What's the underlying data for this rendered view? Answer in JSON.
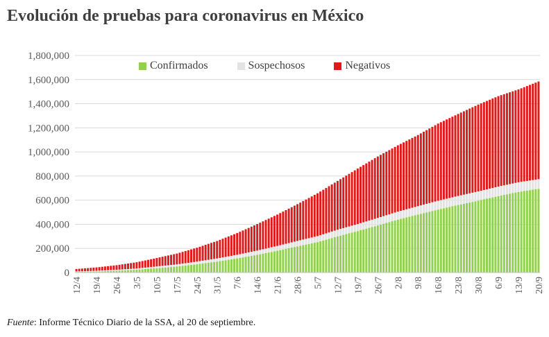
{
  "title": "Evolución de pruebas para coronavirus en México",
  "source": {
    "label": "Fuente",
    "text": ": Informe Técnico Diario de la SSA, al 20 de septiembre."
  },
  "colors": {
    "confirmados": "#92d050",
    "sospechosos": "#e3e3e3",
    "negativos": "#e01a1a",
    "grid": "#d9d9d9",
    "axis": "#595959"
  },
  "chart_data": {
    "type": "bar",
    "stacked": true,
    "title": "Evolución de pruebas para coronavirus en México",
    "xlabel": "",
    "ylabel": "",
    "ylim": [
      0,
      1800000
    ],
    "yticks": [
      0,
      200000,
      400000,
      600000,
      800000,
      1000000,
      1200000,
      1400000,
      1600000,
      1800000
    ],
    "ytick_labels": [
      "0",
      "200,000",
      "400,000",
      "600,000",
      "800,000",
      "1,000,000",
      "1,200,000",
      "1,400,000",
      "1,600,000",
      "1,800,000"
    ],
    "x_range_days": 162,
    "xticks": [
      {
        "day": 0,
        "label": "12/4"
      },
      {
        "day": 7,
        "label": "19/4"
      },
      {
        "day": 14,
        "label": "26/4"
      },
      {
        "day": 21,
        "label": "3/5"
      },
      {
        "day": 28,
        "label": "10/5"
      },
      {
        "day": 35,
        "label": "17/5"
      },
      {
        "day": 42,
        "label": "24/5"
      },
      {
        "day": 49,
        "label": "31/5"
      },
      {
        "day": 56,
        "label": "7/6"
      },
      {
        "day": 63,
        "label": "14/6"
      },
      {
        "day": 70,
        "label": "21/6"
      },
      {
        "day": 77,
        "label": "28/6"
      },
      {
        "day": 84,
        "label": "5/7"
      },
      {
        "day": 91,
        "label": "12/7"
      },
      {
        "day": 98,
        "label": "19/7"
      },
      {
        "day": 105,
        "label": "26/7"
      },
      {
        "day": 112,
        "label": "2/8"
      },
      {
        "day": 119,
        "label": "9/8"
      },
      {
        "day": 126,
        "label": "16/8"
      },
      {
        "day": 133,
        "label": "23/8"
      },
      {
        "day": 140,
        "label": "30/8"
      },
      {
        "day": 147,
        "label": "6/9"
      },
      {
        "day": 154,
        "label": "13/9"
      },
      {
        "day": 161,
        "label": "20/9"
      }
    ],
    "legend_position": "top",
    "series_anchor_days": [
      0,
      7,
      14,
      21,
      28,
      35,
      42,
      49,
      56,
      63,
      70,
      77,
      84,
      91,
      98,
      105,
      112,
      119,
      126,
      133,
      140,
      147,
      154,
      161
    ],
    "series": [
      {
        "name": "Confirmados",
        "color": "#92d050",
        "values": [
          4661,
          8261,
          14677,
          23471,
          36327,
          49219,
          68620,
          90664,
          117103,
          146837,
          180545,
          216852,
          252165,
          299750,
          344224,
          390516,
          439046,
          480278,
          522162,
          560164,
          595841,
          634023,
          668381,
          694121
        ]
      },
      {
        "name": "Sospechosos",
        "color": "#e3e3e3",
        "values": [
          4500,
          6000,
          8000,
          10000,
          14000,
          18000,
          22000,
          26000,
          30000,
          35000,
          40000,
          45000,
          50000,
          55000,
          58000,
          62000,
          66000,
          70000,
          73000,
          75000,
          77000,
          79000,
          80000,
          80000
        ]
      },
      {
        "name": "Negativos",
        "color": "#e01a1a",
        "values": [
          20000,
          28000,
          38000,
          52000,
          70000,
          90000,
          115000,
          145000,
          180000,
          220000,
          260000,
          305000,
          355000,
          405000,
          460000,
          510000,
          550000,
          590000,
          640000,
          680000,
          720000,
          750000,
          770000,
          810000
        ]
      }
    ]
  }
}
